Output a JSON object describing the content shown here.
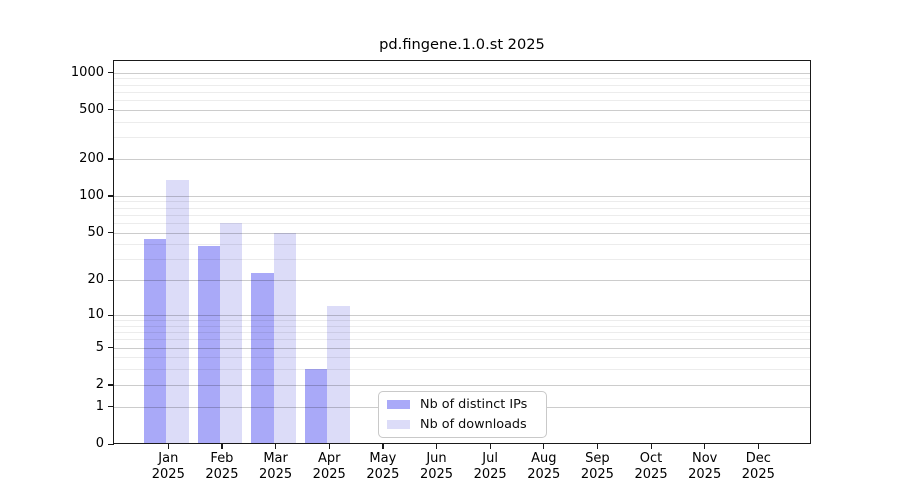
{
  "chart_data": {
    "type": "bar",
    "title": "pd.fingene.1.0.st 2025",
    "categories": [
      "Jan",
      "Feb",
      "Mar",
      "Apr",
      "May",
      "Jun",
      "Jul",
      "Aug",
      "Sep",
      "Oct",
      "Nov",
      "Dec"
    ],
    "year": "2025",
    "series": [
      {
        "name": "Nb of distinct IPs",
        "color": "#a9a9f8",
        "values": [
          44,
          39,
          23,
          3,
          0,
          0,
          0,
          0,
          0,
          0,
          0,
          0
        ]
      },
      {
        "name": "Nb of downloads",
        "color": "#dcdcf8",
        "values": [
          134,
          60,
          50,
          12,
          0,
          0,
          0,
          0,
          0,
          0,
          0,
          0
        ]
      }
    ],
    "yticks": [
      0,
      1,
      2,
      5,
      10,
      20,
      50,
      100,
      200,
      500,
      1000
    ],
    "yscale": "log10(1+y)",
    "ylim": [
      0,
      1260
    ],
    "grid": true,
    "legend_position": "inside-lower-center",
    "xlabel": "",
    "ylabel": ""
  }
}
